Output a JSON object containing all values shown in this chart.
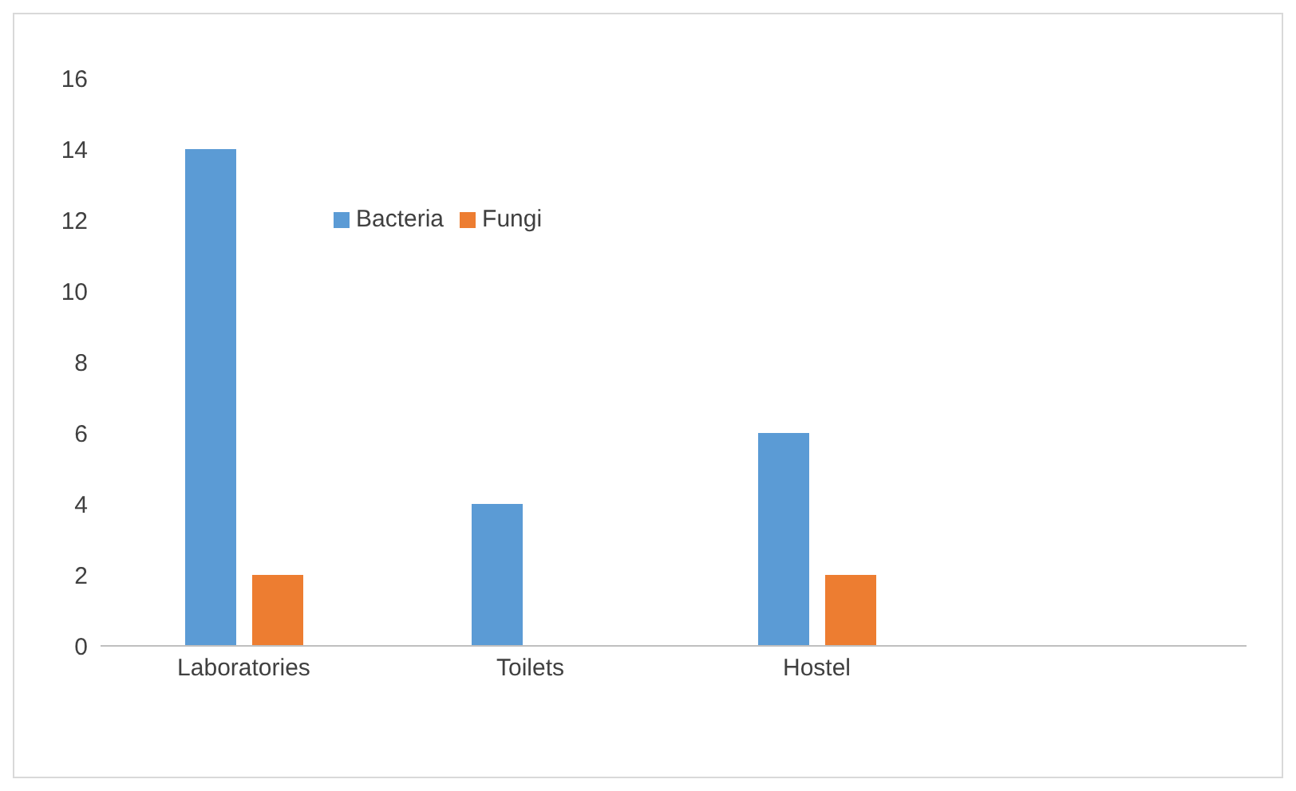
{
  "chart_data": {
    "type": "bar",
    "categories": [
      "Laboratories",
      "Toilets",
      "Hostel",
      null
    ],
    "series": [
      {
        "name": "Bacteria",
        "color": "#5b9bd5",
        "values": [
          14,
          4,
          6,
          null
        ]
      },
      {
        "name": "Fungi",
        "color": "#ed7d31",
        "values": [
          2,
          0,
          2,
          null
        ]
      }
    ],
    "ylim": [
      0,
      16
    ],
    "yticks": [
      0,
      2,
      4,
      6,
      8,
      10,
      12,
      14,
      16
    ],
    "grid": false,
    "legend": "top left"
  }
}
